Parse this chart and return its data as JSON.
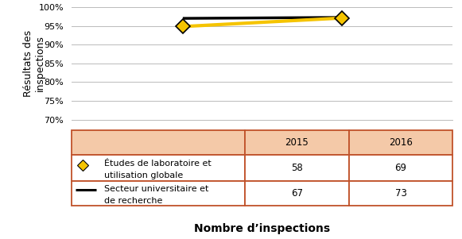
{
  "years": [
    2015,
    2016
  ],
  "yellow_values": [
    94.83,
    97.1
  ],
  "black_values": [
    97.01,
    97.26
  ],
  "yellow_label_line1": "Études de laboratoire et",
  "yellow_label_line2": "utilisation globale",
  "black_label_line1": "Secteur universitaire et",
  "black_label_line2": "de recherche",
  "table_2015_yellow": "58",
  "table_2016_yellow": "69",
  "table_2015_black": "67",
  "table_2016_black": "73",
  "ylabel": "Résultats des\ninspections",
  "xlabel": "Nombre d’inspections",
  "ylim_min": 70,
  "ylim_max": 100,
  "yticks": [
    70,
    75,
    80,
    85,
    90,
    95,
    100
  ],
  "background_color": "#ffffff",
  "table_header_color": "#f4c9a8",
  "table_border_color": "#c0522a",
  "white": "#ffffff",
  "yellow_color": "#f5c400",
  "black_color": "#000000",
  "grid_color": "#bbbbbb",
  "tick_fontsize": 8,
  "label_fontsize": 9,
  "table_fontsize": 8.5,
  "xlabel_fontsize": 10
}
